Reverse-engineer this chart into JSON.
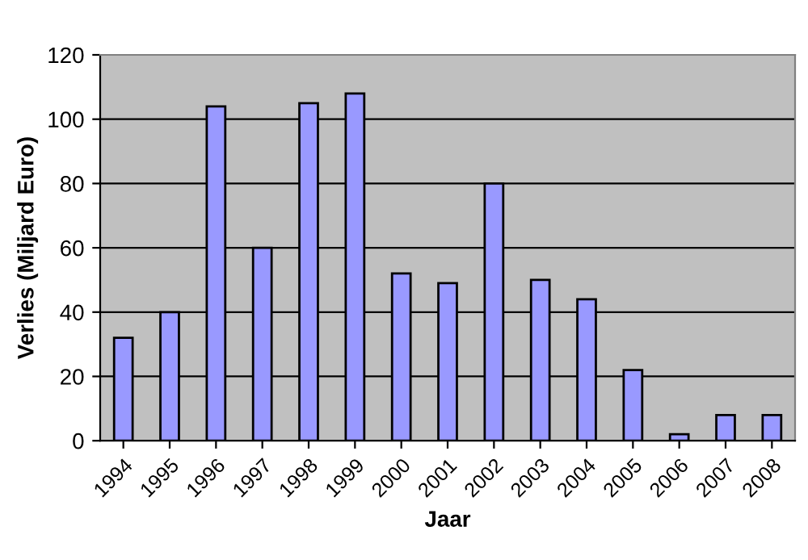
{
  "chart_data": {
    "type": "bar",
    "xlabel": "Jaar",
    "ylabel": "Verlies (Miljard Euro)",
    "categories": [
      "1994",
      "1995",
      "1996",
      "1997",
      "1998",
      "1999",
      "2000",
      "2001",
      "2002",
      "2003",
      "2004",
      "2005",
      "2006",
      "2007",
      "2008"
    ],
    "values": [
      32,
      40,
      104,
      60,
      105,
      108,
      52,
      49,
      80,
      50,
      44,
      22,
      2,
      8,
      8
    ],
    "color": "#9999ff",
    "ylim": [
      0,
      120
    ],
    "yticks": [
      0,
      20,
      40,
      60,
      80,
      100,
      120
    ],
    "grid": "y",
    "legend": false
  }
}
